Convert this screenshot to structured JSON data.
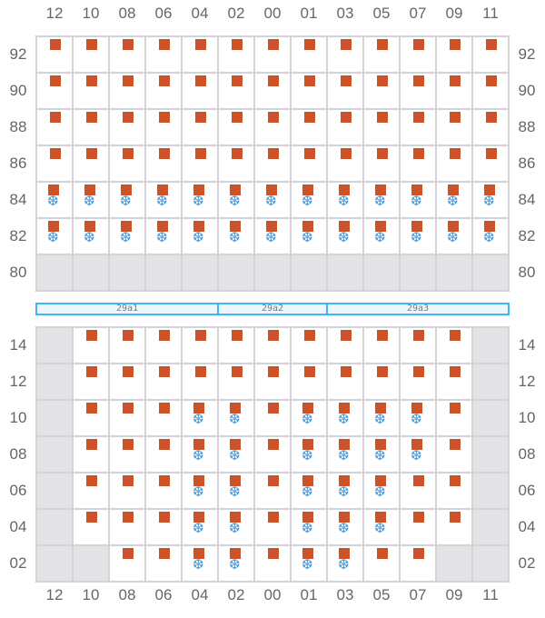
{
  "columns": [
    "12",
    "10",
    "08",
    "06",
    "04",
    "02",
    "00",
    "01",
    "03",
    "05",
    "07",
    "09",
    "11"
  ],
  "colors": {
    "equipment": "#cc5229",
    "cooling": "#4a9be0",
    "unavailable": "#e3e3e6",
    "zone_border": "#3db8f0"
  },
  "legend_codes": {
    "e": "equipment",
    "c": "equipment-with-cooling",
    "x": "unavailable"
  },
  "top_section": {
    "rows": [
      {
        "label": "92",
        "cells": [
          "e",
          "e",
          "e",
          "e",
          "e",
          "e",
          "e",
          "e",
          "e",
          "e",
          "e",
          "e",
          "e"
        ]
      },
      {
        "label": "90",
        "cells": [
          "e",
          "e",
          "e",
          "e",
          "e",
          "e",
          "e",
          "e",
          "e",
          "e",
          "e",
          "e",
          "e"
        ]
      },
      {
        "label": "88",
        "cells": [
          "e",
          "e",
          "e",
          "e",
          "e",
          "e",
          "e",
          "e",
          "e",
          "e",
          "e",
          "e",
          "e"
        ]
      },
      {
        "label": "86",
        "cells": [
          "e",
          "e",
          "e",
          "e",
          "e",
          "e",
          "e",
          "e",
          "e",
          "e",
          "e",
          "e",
          "e"
        ]
      },
      {
        "label": "84",
        "cells": [
          "c",
          "c",
          "c",
          "c",
          "c",
          "c",
          "c",
          "c",
          "c",
          "c",
          "c",
          "c",
          "c"
        ]
      },
      {
        "label": "82",
        "cells": [
          "c",
          "c",
          "c",
          "c",
          "c",
          "c",
          "c",
          "c",
          "c",
          "c",
          "c",
          "c",
          "c"
        ]
      },
      {
        "label": "80",
        "cells": [
          "x",
          "x",
          "x",
          "x",
          "x",
          "x",
          "x",
          "x",
          "x",
          "x",
          "x",
          "x",
          "x"
        ]
      }
    ]
  },
  "zones": [
    {
      "label": "29a1",
      "span": 5
    },
    {
      "label": "29a2",
      "span": 3
    },
    {
      "label": "29a3",
      "span": 5
    }
  ],
  "bottom_section": {
    "rows": [
      {
        "label": "14",
        "cells": [
          "x",
          "e",
          "e",
          "e",
          "e",
          "e",
          "e",
          "e",
          "e",
          "e",
          "e",
          "e",
          "x"
        ]
      },
      {
        "label": "12",
        "cells": [
          "x",
          "e",
          "e",
          "e",
          "e",
          "e",
          "e",
          "e",
          "e",
          "e",
          "e",
          "e",
          "x"
        ]
      },
      {
        "label": "10",
        "cells": [
          "x",
          "e",
          "e",
          "e",
          "c",
          "c",
          "e",
          "c",
          "c",
          "c",
          "c",
          "e",
          "x"
        ]
      },
      {
        "label": "08",
        "cells": [
          "x",
          "e",
          "e",
          "e",
          "c",
          "c",
          "e",
          "c",
          "c",
          "c",
          "c",
          "e",
          "x"
        ]
      },
      {
        "label": "06",
        "cells": [
          "x",
          "e",
          "e",
          "e",
          "c",
          "c",
          "e",
          "c",
          "c",
          "c",
          "e",
          "e",
          "x"
        ]
      },
      {
        "label": "04",
        "cells": [
          "x",
          "e",
          "e",
          "e",
          "c",
          "c",
          "e",
          "c",
          "c",
          "c",
          "e",
          "e",
          "x"
        ]
      },
      {
        "label": "02",
        "cells": [
          "x",
          "x",
          "e",
          "e",
          "c",
          "c",
          "e",
          "c",
          "c",
          "e",
          "e",
          "x",
          "x"
        ]
      }
    ]
  },
  "icons": {
    "equipment": "rack-square",
    "cooling": "snowflake-icon"
  }
}
